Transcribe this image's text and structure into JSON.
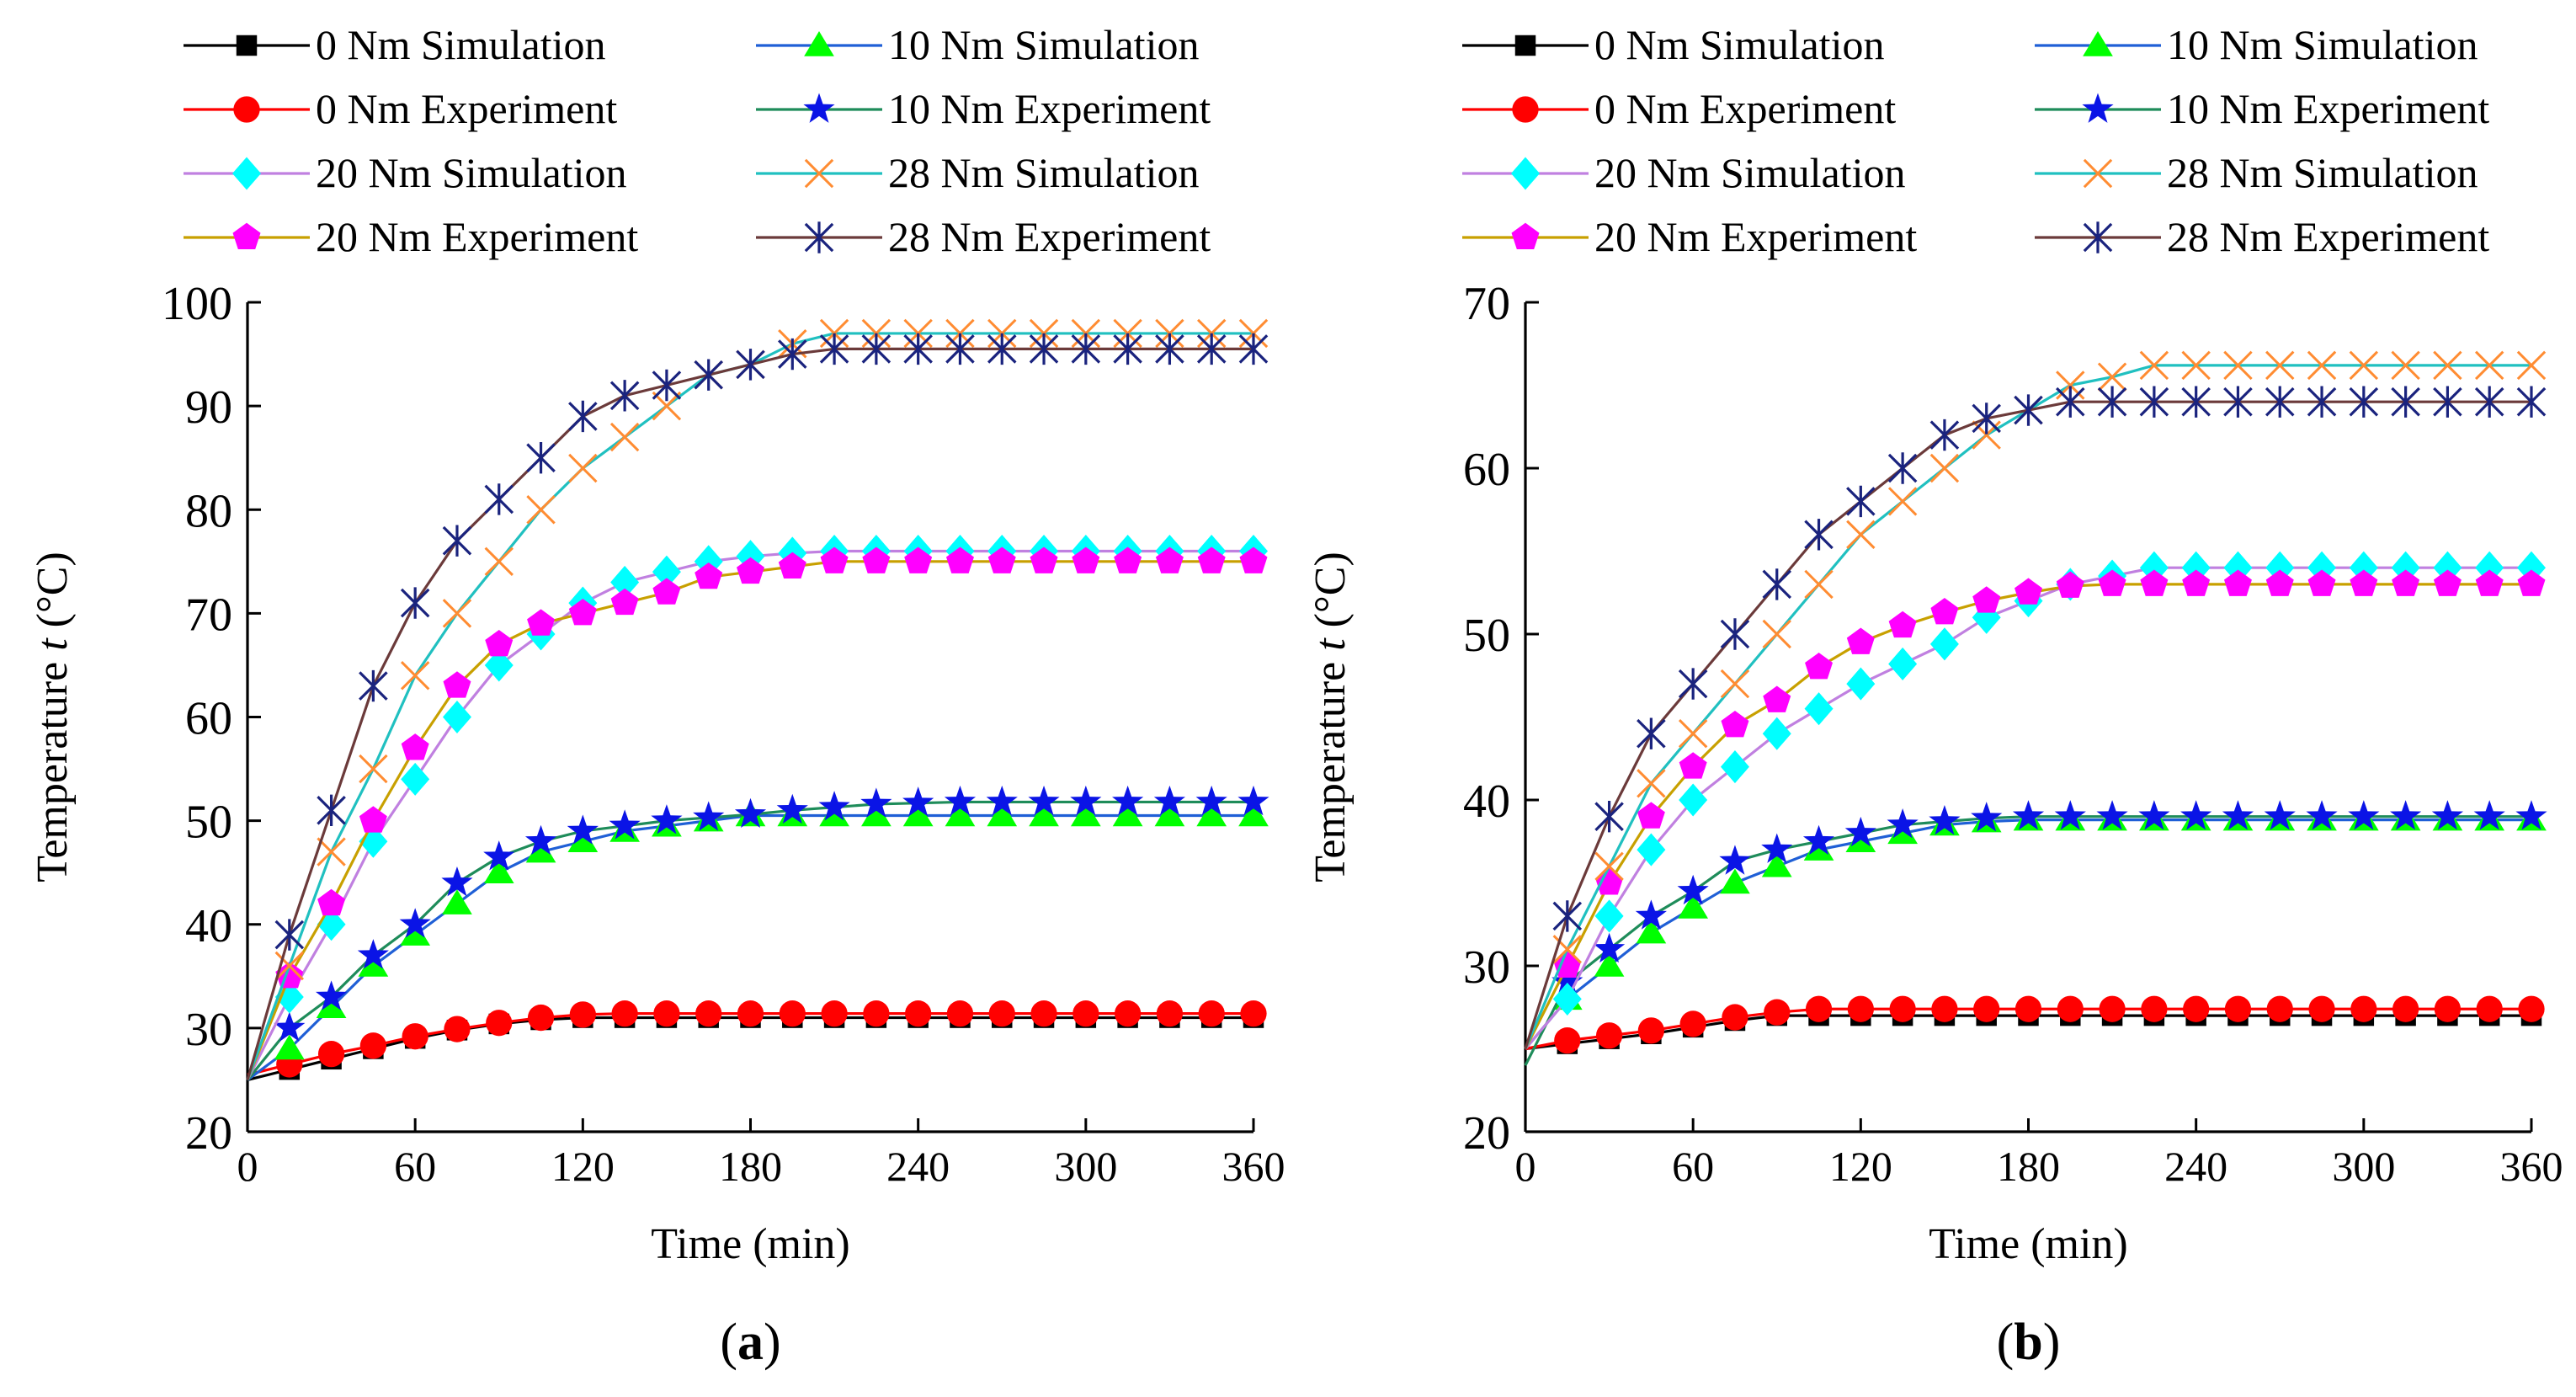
{
  "legend": {
    "items": [
      {
        "id": "s0",
        "label": "0 Nm   Simulation",
        "color": "#000000",
        "marker": "square"
      },
      {
        "id": "s10",
        "label": "10 Nm Simulation",
        "color": "#00ff00",
        "line_color": "#1f5fd6",
        "marker": "triangle"
      },
      {
        "id": "e0",
        "label": "0 Nm   Experiment",
        "color": "#ff0000",
        "marker": "circle"
      },
      {
        "id": "e10",
        "label": "10 Nm Experiment",
        "color": "#0a14e6",
        "line_color": "#1e8c5a",
        "marker": "star"
      },
      {
        "id": "s20",
        "label": "20 Nm Simulation",
        "color": "#00ffff",
        "line_color": "#c080e0",
        "marker": "diamond"
      },
      {
        "id": "s28",
        "label": "28 Nm Simulation",
        "color": "#ff8c32",
        "line_color": "#20c0c0",
        "marker": "x"
      },
      {
        "id": "e20",
        "label": "20 Nm Experiment",
        "color": "#ff00ff",
        "line_color": "#c8a000",
        "marker": "pentagon"
      },
      {
        "id": "e28",
        "label": "28 Nm Experiment",
        "color": "#1a237e",
        "line_color": "#6b3a3a",
        "marker": "asterisk"
      }
    ]
  },
  "chart_data": [
    {
      "type": "line",
      "caption_letter": "a",
      "xlabel": "Time (min)",
      "ylabel_prefix": "Temperature ",
      "ylabel_var": "t",
      "ylabel_suffix": " (°C)",
      "xlim": [
        0,
        360
      ],
      "ylim": [
        20,
        100
      ],
      "xticks": [
        "0",
        "60",
        "120",
        "180",
        "240",
        "300",
        "360"
      ],
      "yticks": [
        "20",
        "30",
        "40",
        "50",
        "60",
        "70",
        "80",
        "90",
        "100"
      ],
      "x": [
        0,
        15,
        30,
        45,
        60,
        75,
        90,
        105,
        120,
        135,
        150,
        165,
        180,
        195,
        210,
        225,
        240,
        255,
        270,
        285,
        300,
        315,
        330,
        345,
        360
      ],
      "series": [
        {
          "id": "s0",
          "values": [
            25,
            26,
            27,
            28,
            29,
            29.8,
            30.4,
            30.8,
            31,
            31,
            31,
            31,
            31,
            31,
            31,
            31,
            31,
            31,
            31,
            31,
            31,
            31,
            31,
            31,
            31
          ]
        },
        {
          "id": "e0",
          "values": [
            25.5,
            26.5,
            27.5,
            28.3,
            29.2,
            29.9,
            30.5,
            31,
            31.3,
            31.4,
            31.4,
            31.4,
            31.4,
            31.4,
            31.4,
            31.4,
            31.4,
            31.4,
            31.4,
            31.4,
            31.4,
            31.4,
            31.4,
            31.4,
            31.4
          ]
        },
        {
          "id": "s10",
          "values": [
            25,
            28,
            32,
            36,
            39,
            42,
            45,
            47,
            48,
            49,
            49.5,
            50,
            50.5,
            50.5,
            50.5,
            50.5,
            50.5,
            50.5,
            50.5,
            50.5,
            50.5,
            50.5,
            50.5,
            50.5,
            50.5
          ]
        },
        {
          "id": "e10",
          "values": [
            25,
            30,
            33,
            37,
            40,
            44,
            46.5,
            48,
            49,
            49.5,
            50,
            50.3,
            50.6,
            51,
            51.3,
            51.6,
            51.7,
            51.8,
            51.8,
            51.8,
            51.8,
            51.8,
            51.8,
            51.8,
            51.8
          ]
        },
        {
          "id": "s20",
          "values": [
            25,
            33,
            40,
            48,
            54,
            60,
            65,
            68,
            71,
            73,
            74,
            75,
            75.5,
            75.8,
            76,
            76,
            76,
            76,
            76,
            76,
            76,
            76,
            76,
            76,
            76
          ]
        },
        {
          "id": "e20",
          "values": [
            25,
            35,
            42,
            50,
            57,
            63,
            67,
            69,
            70,
            71,
            72,
            73.5,
            74,
            74.5,
            75,
            75,
            75,
            75,
            75,
            75,
            75,
            75,
            75,
            75,
            75
          ]
        },
        {
          "id": "s28",
          "values": [
            25,
            36,
            47,
            55,
            64,
            70,
            75,
            80,
            84,
            87,
            90,
            93,
            94,
            96,
            97,
            97,
            97,
            97,
            97,
            97,
            97,
            97,
            97,
            97,
            97
          ]
        },
        {
          "id": "e28",
          "values": [
            25,
            39,
            51,
            63,
            71,
            77,
            81,
            85,
            89,
            91,
            92,
            93,
            94,
            95,
            95.5,
            95.5,
            95.5,
            95.5,
            95.5,
            95.5,
            95.5,
            95.5,
            95.5,
            95.5,
            95.5
          ]
        }
      ]
    },
    {
      "type": "line",
      "caption_letter": "b",
      "xlabel": "Time (min)",
      "ylabel_prefix": "Temperature ",
      "ylabel_var": "t",
      "ylabel_suffix": " (°C)",
      "xlim": [
        0,
        360
      ],
      "ylim": [
        20,
        70
      ],
      "xticks": [
        "0",
        "60",
        "120",
        "180",
        "240",
        "300",
        "360"
      ],
      "yticks": [
        "20",
        "30",
        "40",
        "50",
        "60",
        "70"
      ],
      "x": [
        0,
        15,
        30,
        45,
        60,
        75,
        90,
        105,
        120,
        135,
        150,
        165,
        180,
        195,
        210,
        225,
        240,
        255,
        270,
        285,
        300,
        315,
        330,
        345,
        360
      ],
      "series": [
        {
          "id": "s0",
          "values": [
            25,
            25.3,
            25.6,
            25.9,
            26.3,
            26.7,
            27,
            27,
            27,
            27,
            27,
            27,
            27,
            27,
            27,
            27,
            27,
            27,
            27,
            27,
            27,
            27,
            27,
            27,
            27
          ]
        },
        {
          "id": "e0",
          "values": [
            25,
            25.5,
            25.8,
            26.1,
            26.5,
            26.9,
            27.2,
            27.4,
            27.4,
            27.4,
            27.4,
            27.4,
            27.4,
            27.4,
            27.4,
            27.4,
            27.4,
            27.4,
            27.4,
            27.4,
            27.4,
            27.4,
            27.4,
            27.4,
            27.4
          ]
        },
        {
          "id": "s10",
          "values": [
            25,
            28,
            30,
            32,
            33.5,
            35,
            36,
            37,
            37.5,
            38,
            38.5,
            38.7,
            38.8,
            38.8,
            38.8,
            38.8,
            38.8,
            38.8,
            38.8,
            38.8,
            38.8,
            38.8,
            38.8,
            38.8,
            38.8
          ]
        },
        {
          "id": "e10",
          "values": [
            24,
            29,
            31,
            33,
            34.5,
            36.3,
            37,
            37.5,
            38,
            38.5,
            38.7,
            38.9,
            39,
            39,
            39,
            39,
            39,
            39,
            39,
            39,
            39,
            39,
            39,
            39,
            39
          ]
        },
        {
          "id": "s20",
          "values": [
            25,
            28,
            33,
            37,
            40,
            42,
            44,
            45.5,
            47,
            48.2,
            49.4,
            51,
            52,
            53,
            53.5,
            54,
            54,
            54,
            54,
            54,
            54,
            54,
            54,
            54,
            54
          ]
        },
        {
          "id": "e20",
          "values": [
            25,
            30,
            35,
            39,
            42,
            44.5,
            46,
            48,
            49.5,
            50.5,
            51.3,
            52,
            52.5,
            52.9,
            53,
            53,
            53,
            53,
            53,
            53,
            53,
            53,
            53,
            53,
            53
          ]
        },
        {
          "id": "s28",
          "values": [
            25,
            31,
            36,
            41,
            44,
            47,
            50,
            53,
            56,
            58,
            60,
            62,
            63.5,
            65,
            65.5,
            66.2,
            66.2,
            66.2,
            66.2,
            66.2,
            66.2,
            66.2,
            66.2,
            66.2,
            66.2
          ]
        },
        {
          "id": "e28",
          "values": [
            25,
            33,
            39,
            44,
            47,
            50,
            53,
            56,
            58,
            60,
            62,
            63,
            63.5,
            64,
            64,
            64,
            64,
            64,
            64,
            64,
            64,
            64,
            64,
            64,
            64
          ]
        }
      ]
    }
  ]
}
